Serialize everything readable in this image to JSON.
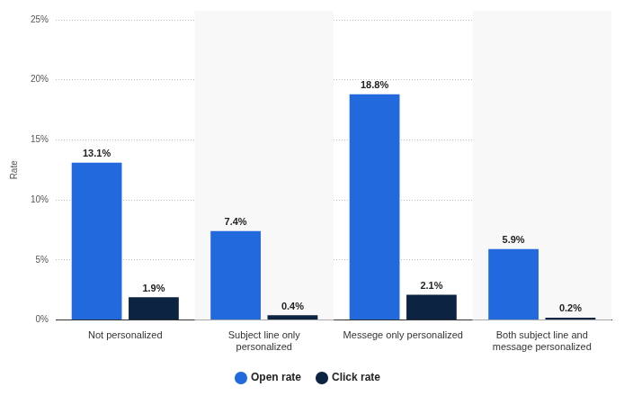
{
  "chart_data": {
    "type": "bar",
    "y_label": "Rate",
    "categories": [
      "Not personalized",
      "Subject line only personalized",
      "Messege only personalized",
      "Both subject line and message personalized"
    ],
    "series": [
      {
        "name": "Open rate",
        "color": "#2169dc",
        "values": [
          13.1,
          7.4,
          18.8,
          5.9
        ],
        "value_labels": [
          "13.1%",
          "7.4%",
          "18.8%",
          "5.9%"
        ]
      },
      {
        "name": "Click rate",
        "color": "#0c2341",
        "values": [
          1.9,
          0.4,
          2.1,
          0.2
        ],
        "value_labels": [
          "1.9%",
          "0.4%",
          "2.1%",
          "0.2%"
        ]
      }
    ],
    "ylim": [
      0,
      25
    ],
    "yticks": [
      {
        "value": 0,
        "label": "0%"
      },
      {
        "value": 5,
        "label": "5%"
      },
      {
        "value": 10,
        "label": "10%"
      },
      {
        "value": 15,
        "label": "15%"
      },
      {
        "value": 20,
        "label": "20%"
      },
      {
        "value": 25,
        "label": "25%"
      }
    ],
    "grid": true,
    "legend": "bottom",
    "data_labels": true
  }
}
